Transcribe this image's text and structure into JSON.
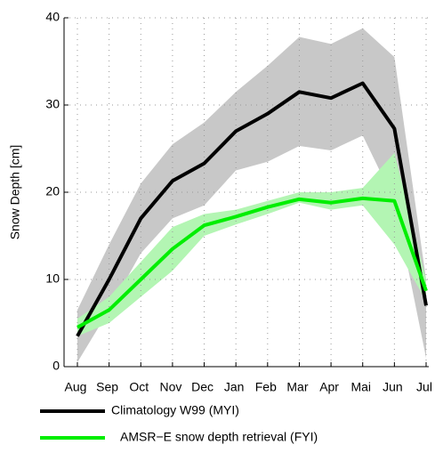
{
  "chart_data": {
    "type": "line",
    "y_label": "Snow Depth [cm]",
    "categories": [
      "Aug",
      "Sep",
      "Oct",
      "Nov",
      "Dec",
      "Jan",
      "Feb",
      "Mar",
      "Apr",
      "Mai",
      "Jun",
      "Jul"
    ],
    "ylim": [
      0,
      40
    ],
    "yticks": [
      0,
      10,
      20,
      30,
      40
    ],
    "grid": true,
    "series": [
      {
        "name": "Climatology W99 (MYI)",
        "color": "#000000",
        "band_color": "#c8c8c8",
        "values": [
          3.5,
          10,
          17,
          21.3,
          23.3,
          27,
          29,
          31.5,
          30.8,
          32.5,
          27.3,
          7
        ],
        "upper": [
          6.5,
          14,
          21,
          25.5,
          28,
          31.5,
          34.5,
          37.8,
          37,
          38.8,
          35.5,
          10
        ],
        "lower": [
          0.5,
          6.5,
          13,
          17,
          18.5,
          22.5,
          23.5,
          25.3,
          24.8,
          26.5,
          19,
          1
        ]
      },
      {
        "name": "AMSR−E snow depth retrieval (FYI)",
        "color": "#00ee00",
        "band_color": "#b3f5b3",
        "values": [
          4.5,
          6.5,
          10,
          13.5,
          16.2,
          17.2,
          18.3,
          19.2,
          18.8,
          19.3,
          19,
          8.7
        ],
        "upper": [
          5.5,
          8,
          12,
          16,
          17.5,
          18,
          19,
          20,
          20,
          20.5,
          24.5,
          10
        ],
        "lower": [
          3.5,
          5,
          8,
          11,
          15,
          16.3,
          17.5,
          18.8,
          18,
          18.5,
          14,
          7.5
        ]
      }
    ]
  }
}
